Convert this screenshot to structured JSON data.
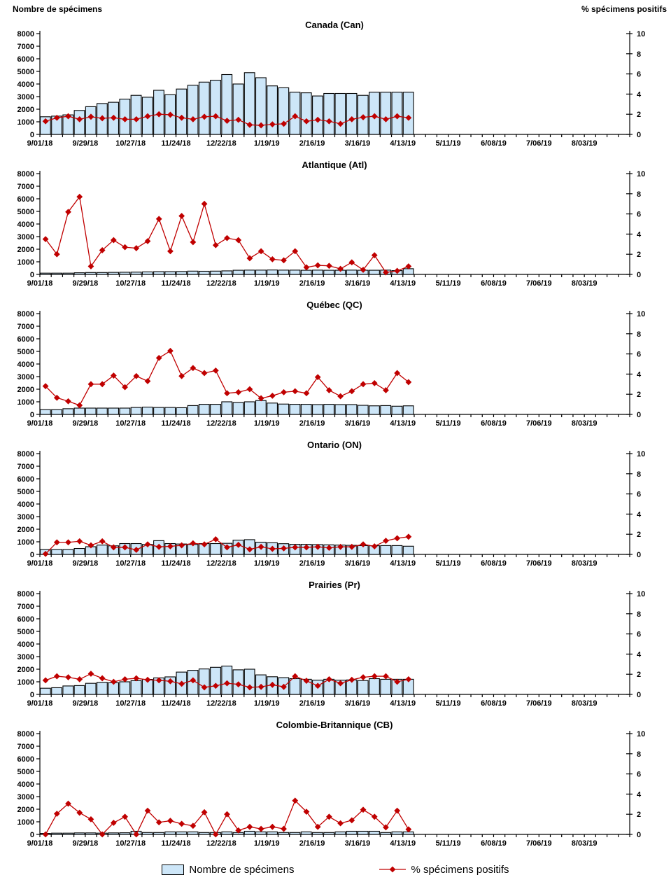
{
  "header": {
    "left_axis_title": "Nombre de spécimens",
    "right_axis_title": "% spécimens positifs"
  },
  "legend": {
    "bars_label": "Nombre de spécimens",
    "line_label": "% spécimens positifs"
  },
  "colors": {
    "bar_fill": "#CDE6F8",
    "bar_stroke": "#000000",
    "line_red": "#C00000"
  },
  "axes": {
    "x_tick_labels": [
      "9/01/18",
      "9/29/18",
      "10/27/18",
      "11/24/18",
      "12/22/18",
      "1/19/19",
      "2/16/19",
      "3/16/19",
      "4/13/19",
      "5/11/19",
      "6/08/19",
      "7/06/19",
      "8/03/19"
    ],
    "label_every_n_weeks": 4,
    "weeks_total": 52,
    "left_axis": {
      "min": 0,
      "max": 8000,
      "step": 1000
    },
    "right_axis": {
      "min": 0,
      "max": 10,
      "step": 2
    },
    "data_weeks": [
      "9/01/18",
      "9/08/18",
      "9/15/18",
      "9/22/18",
      "9/29/18",
      "10/06/18",
      "10/13/18",
      "10/20/18",
      "10/27/18",
      "11/03/18",
      "11/10/18",
      "11/17/18",
      "11/24/18",
      "12/01/18",
      "12/08/18",
      "12/15/18",
      "12/22/18",
      "12/29/18",
      "1/05/19",
      "1/12/19",
      "1/19/19",
      "1/26/19",
      "2/02/19",
      "2/09/19",
      "2/16/19",
      "2/23/19",
      "3/02/19",
      "3/09/19",
      "3/16/19",
      "3/23/19",
      "3/30/19",
      "4/06/19",
      "4/13/19"
    ]
  },
  "chart_data": [
    {
      "type": "bar+line",
      "title": "Canada (Can)",
      "bars_series_name": "Nombre de spécimens",
      "line_series_name": "% spécimens positifs",
      "bars": [
        1400,
        1450,
        1550,
        1900,
        2200,
        2450,
        2550,
        2800,
        3100,
        2950,
        3500,
        3150,
        3600,
        3900,
        4150,
        4300,
        4750,
        4000,
        4900,
        4500,
        3850,
        3700,
        3350,
        3300,
        3050,
        3250,
        3250,
        3250,
        3100,
        3350,
        3350,
        3350,
        3350
      ],
      "pct": [
        1.3,
        1.65,
        1.8,
        1.5,
        1.75,
        1.6,
        1.65,
        1.5,
        1.5,
        1.8,
        2.0,
        1.95,
        1.65,
        1.5,
        1.75,
        1.8,
        1.35,
        1.45,
        0.95,
        0.9,
        1.0,
        1.05,
        1.8,
        1.3,
        1.45,
        1.3,
        1.05,
        1.5,
        1.7,
        1.8,
        1.5,
        1.8,
        1.65
      ]
    },
    {
      "type": "bar+line",
      "title": "Atlantique (Atl)",
      "bars_series_name": "Nombre de spécimens",
      "line_series_name": "% spécimens positifs",
      "bars": [
        100,
        100,
        100,
        130,
        150,
        150,
        160,
        170,
        180,
        200,
        220,
        220,
        230,
        260,
        250,
        260,
        280,
        330,
        340,
        340,
        350,
        340,
        340,
        330,
        340,
        330,
        330,
        340,
        330,
        330,
        340,
        300,
        450
      ],
      "pct": [
        3.5,
        2.0,
        6.2,
        7.7,
        0.8,
        2.4,
        3.4,
        2.7,
        2.6,
        3.3,
        5.5,
        2.3,
        5.8,
        3.2,
        7.0,
        2.9,
        3.6,
        3.4,
        1.6,
        2.3,
        1.5,
        1.4,
        2.3,
        0.7,
        0.9,
        0.85,
        0.55,
        1.2,
        0.45,
        1.9,
        0.2,
        0.35,
        0.8
      ]
    },
    {
      "type": "bar+line",
      "title": "Québec (QC)",
      "bars_series_name": "Nombre de spécimens",
      "line_series_name": "% spécimens positifs",
      "bars": [
        380,
        380,
        450,
        500,
        500,
        500,
        500,
        500,
        550,
        580,
        550,
        550,
        530,
        700,
        800,
        800,
        1000,
        950,
        1000,
        1100,
        900,
        820,
        800,
        800,
        780,
        800,
        780,
        780,
        720,
        680,
        700,
        650,
        680
      ],
      "pct": [
        2.8,
        1.65,
        1.3,
        0.9,
        3.0,
        3.0,
        3.85,
        2.7,
        3.8,
        3.3,
        5.6,
        6.3,
        3.8,
        4.6,
        4.1,
        4.35,
        2.1,
        2.2,
        2.5,
        1.6,
        1.85,
        2.2,
        2.3,
        2.1,
        3.7,
        2.4,
        1.8,
        2.3,
        3.0,
        3.1,
        2.4,
        4.1,
        3.2
      ]
    },
    {
      "type": "bar+line",
      "title": "Ontario (ON)",
      "bars_series_name": "Nombre de spécimens",
      "line_series_name": "% spécimens positifs",
      "bars": [
        390,
        390,
        390,
        470,
        610,
        740,
        680,
        860,
        860,
        790,
        1090,
        860,
        825,
        790,
        860,
        860,
        880,
        1130,
        1170,
        970,
        920,
        850,
        800,
        800,
        780,
        760,
        740,
        720,
        700,
        690,
        700,
        700,
        650
      ],
      "pct": [
        0.05,
        1.2,
        1.2,
        1.3,
        0.9,
        1.3,
        0.7,
        0.7,
        0.45,
        1.0,
        0.75,
        0.8,
        0.9,
        1.1,
        1.0,
        1.5,
        0.7,
        0.95,
        0.5,
        0.75,
        0.55,
        0.6,
        0.7,
        0.7,
        0.75,
        0.65,
        0.75,
        0.75,
        1.0,
        0.8,
        1.35,
        1.6,
        1.75
      ]
    },
    {
      "type": "bar+line",
      "title": "Prairies (Pr)",
      "bars_series_name": "Nombre de spécimens",
      "line_series_name": "% spécimens positifs",
      "bars": [
        490,
        530,
        670,
        700,
        880,
        960,
        930,
        1000,
        1090,
        1190,
        1310,
        1390,
        1770,
        1910,
        2020,
        2150,
        2250,
        1950,
        2000,
        1550,
        1400,
        1330,
        1250,
        1200,
        1130,
        1200,
        1130,
        1150,
        1100,
        1250,
        1200,
        1200,
        1200
      ],
      "pct": [
        1.4,
        1.8,
        1.7,
        1.5,
        2.05,
        1.6,
        1.25,
        1.5,
        1.6,
        1.45,
        1.4,
        1.3,
        1.05,
        1.4,
        0.7,
        0.85,
        1.1,
        1.0,
        0.7,
        0.75,
        0.95,
        0.75,
        1.8,
        1.35,
        0.85,
        1.5,
        1.1,
        1.45,
        1.7,
        1.8,
        1.8,
        1.25,
        1.5
      ]
    },
    {
      "type": "bar+line",
      "title": "Colombie-Britannique (CB)",
      "bars_series_name": "Nombre de spécimens",
      "line_series_name": "% spécimens positifs",
      "bars": [
        80,
        100,
        100,
        120,
        120,
        100,
        120,
        130,
        250,
        150,
        150,
        200,
        200,
        200,
        150,
        150,
        200,
        150,
        250,
        200,
        200,
        150,
        150,
        200,
        150,
        150,
        200,
        250,
        250,
        250,
        150,
        200,
        200
      ],
      "pct": [
        0,
        2.05,
        3.05,
        2.15,
        1.5,
        0,
        1.15,
        1.75,
        0,
        2.35,
        1.2,
        1.35,
        1.05,
        0.85,
        2.2,
        0,
        2.0,
        0.4,
        0.75,
        0.55,
        0.75,
        0.55,
        3.35,
        2.25,
        0.75,
        1.75,
        1.1,
        1.4,
        2.45,
        1.75,
        0.7,
        2.35,
        0.5
      ]
    }
  ]
}
